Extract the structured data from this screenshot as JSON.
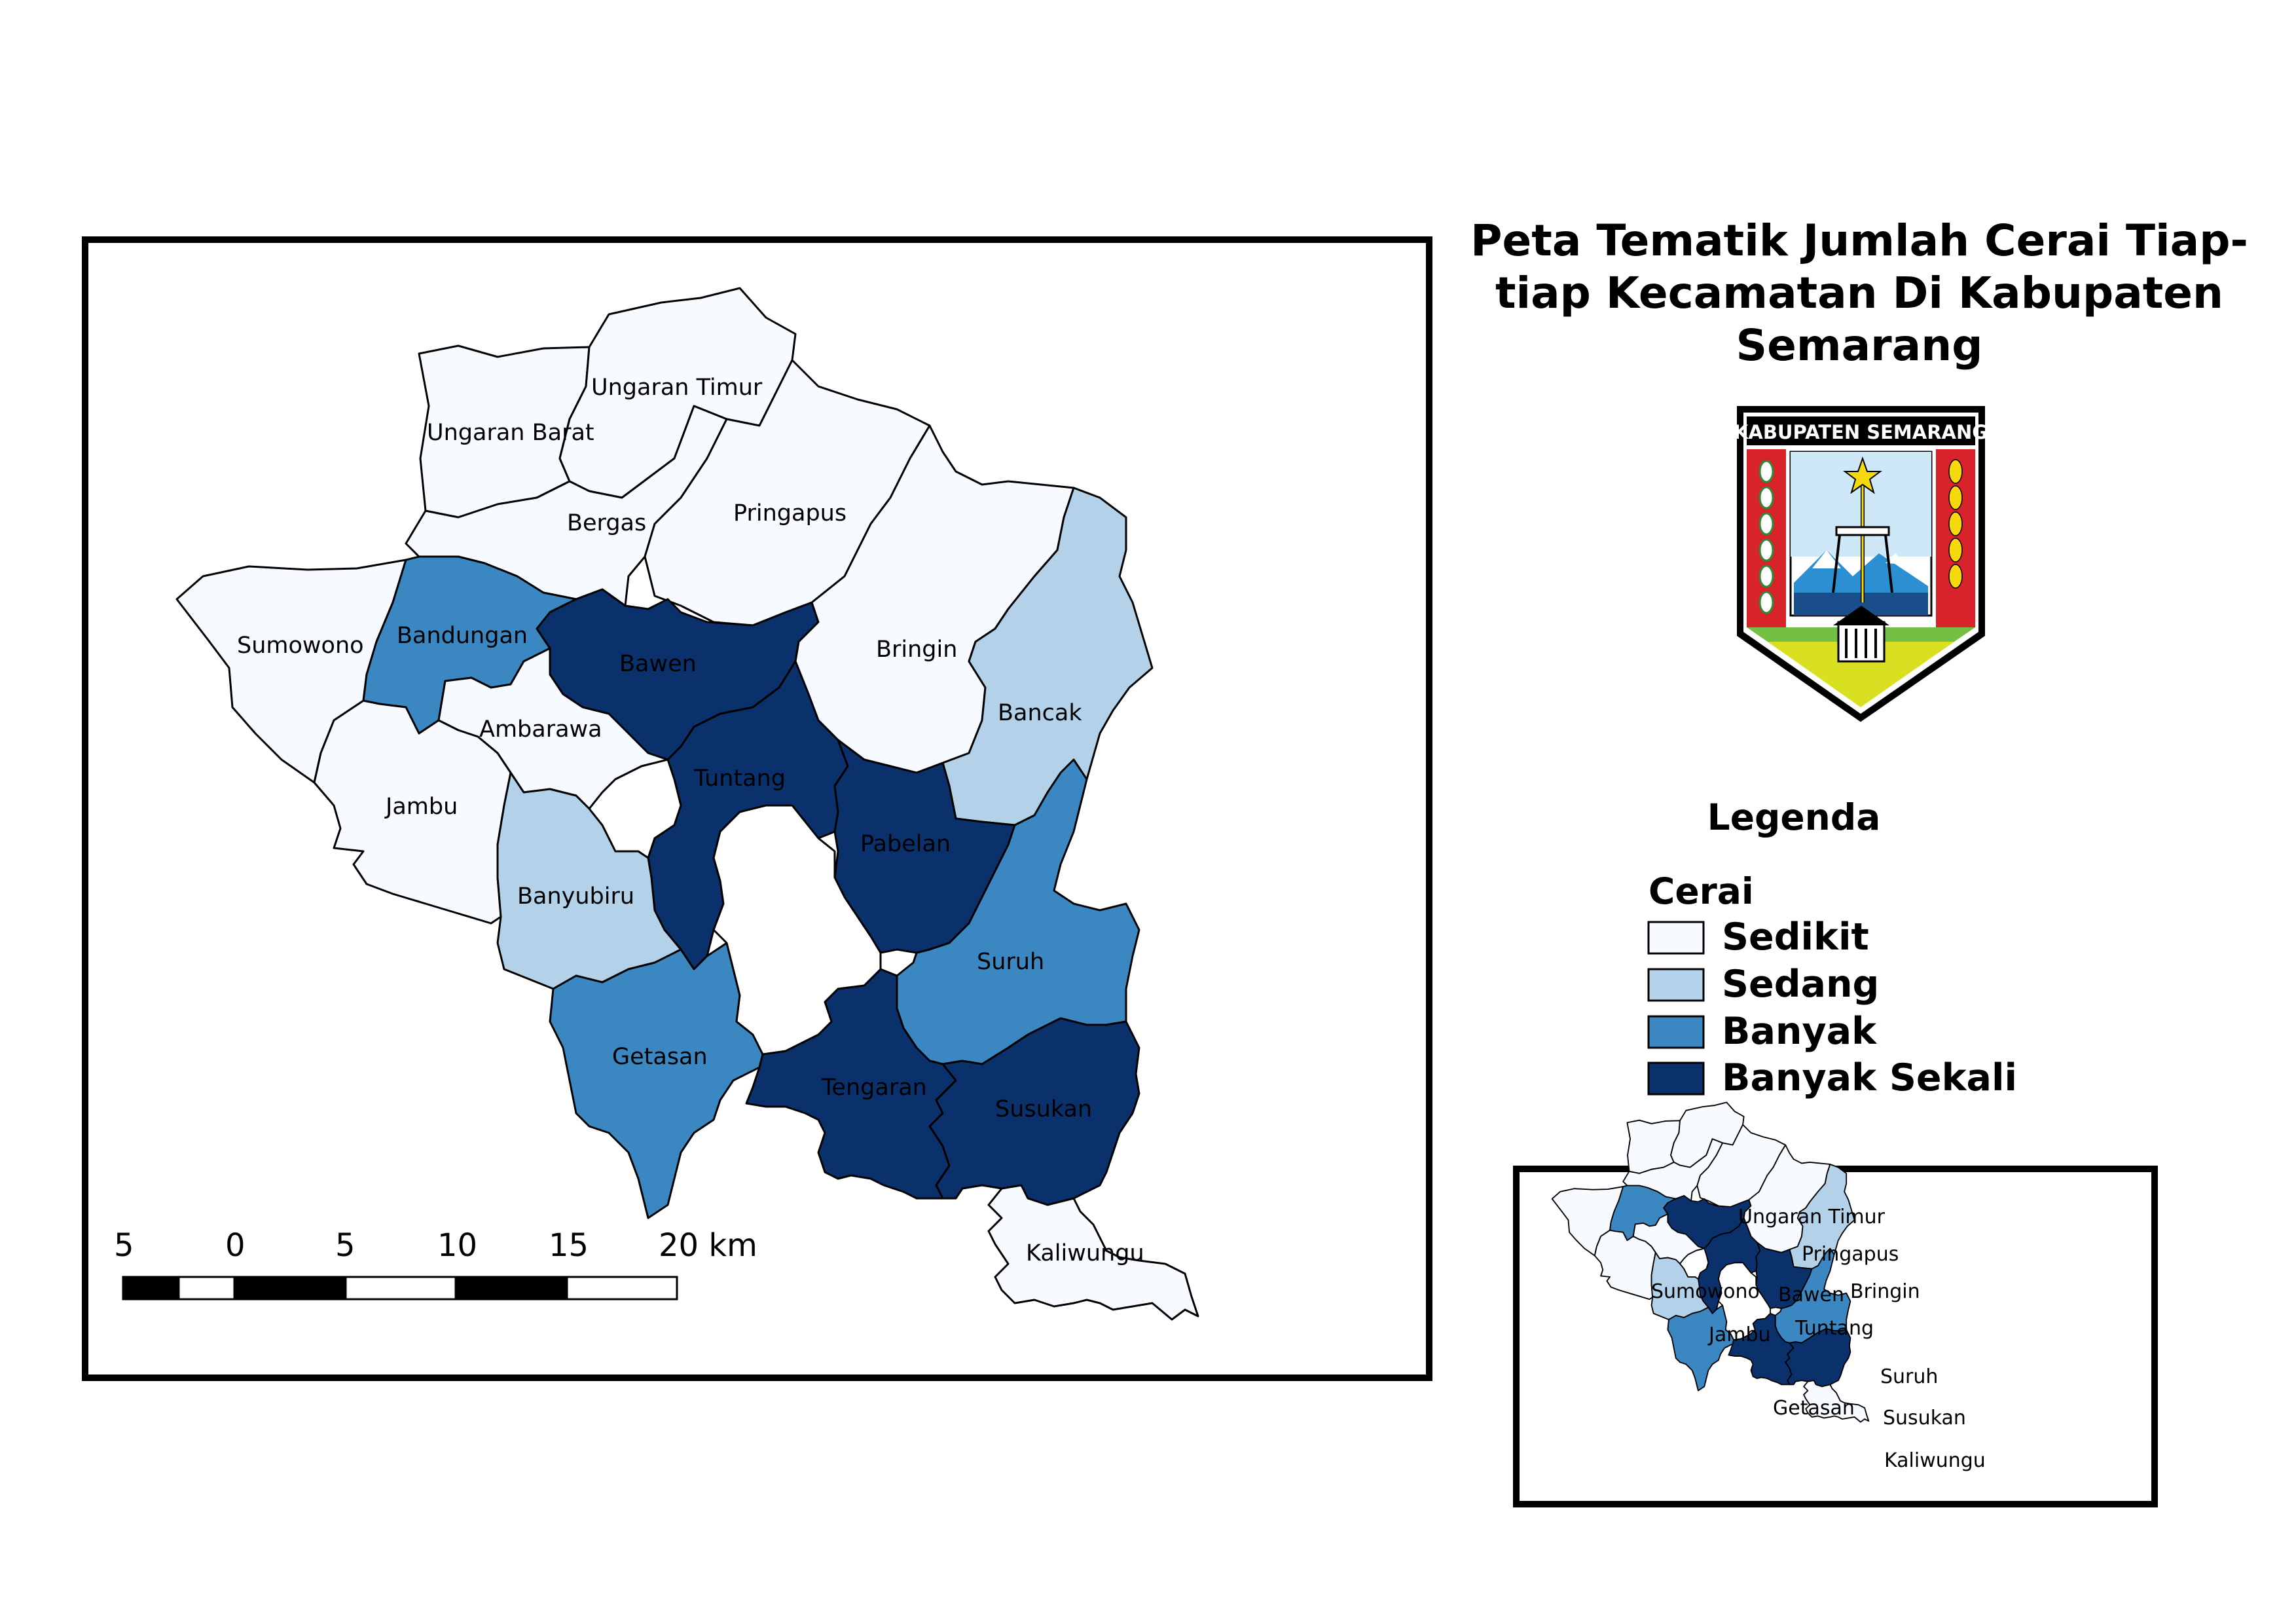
{
  "title": {
    "line1": "Peta Tematik Jumlah Cerai Tiap-",
    "line2": "tiap Kecamatan Di Kabupaten",
    "line3": "Semarang"
  },
  "logo": {
    "text": "KABUPATEN SEMARANG",
    "icon": "regency-emblem-icon"
  },
  "legend": {
    "heading": "Legenda",
    "subheading": "Cerai",
    "classes": [
      {
        "label": "Sedikit",
        "color": "#f7fbff"
      },
      {
        "label": "Sedang",
        "color": "#b3d2e9"
      },
      {
        "label": "Banyak",
        "color": "#3b87c2"
      },
      {
        "label": "Banyak Sekali",
        "color": "#0b316d"
      }
    ]
  },
  "districts": [
    {
      "name": "Ungaran Barat",
      "class": "Sedikit"
    },
    {
      "name": "Ungaran Timur",
      "class": "Sedikit"
    },
    {
      "name": "Bergas",
      "class": "Sedikit"
    },
    {
      "name": "Pringapus",
      "class": "Sedikit"
    },
    {
      "name": "Sumowono",
      "class": "Sedikit"
    },
    {
      "name": "Bandungan",
      "class": "Banyak"
    },
    {
      "name": "Bawen",
      "class": "Banyak Sekali"
    },
    {
      "name": "Bringin",
      "class": "Sedikit"
    },
    {
      "name": "Bancak",
      "class": "Sedang"
    },
    {
      "name": "Ambarawa",
      "class": "Sedikit"
    },
    {
      "name": "Jambu",
      "class": "Sedikit"
    },
    {
      "name": "Tuntang",
      "class": "Banyak Sekali"
    },
    {
      "name": "Pabelan",
      "class": "Banyak Sekali"
    },
    {
      "name": "Banyubiru",
      "class": "Sedang"
    },
    {
      "name": "Suruh",
      "class": "Banyak"
    },
    {
      "name": "Getasan",
      "class": "Banyak"
    },
    {
      "name": "Tengaran",
      "class": "Banyak Sekali"
    },
    {
      "name": "Susukan",
      "class": "Banyak Sekali"
    },
    {
      "name": "Kaliwungu",
      "class": "Sedikit"
    }
  ],
  "scale_bar": {
    "labels": [
      "5",
      "0",
      "5",
      "10",
      "15",
      "20 km"
    ]
  },
  "inset_labels": [
    "Ungaran Timur",
    "Pringapus",
    "Sumowono",
    "Bawen",
    "Bringin",
    "Tuntang",
    "Jambu",
    "Suruh",
    "Getasan",
    "Susukan",
    "Kaliwungu"
  ]
}
